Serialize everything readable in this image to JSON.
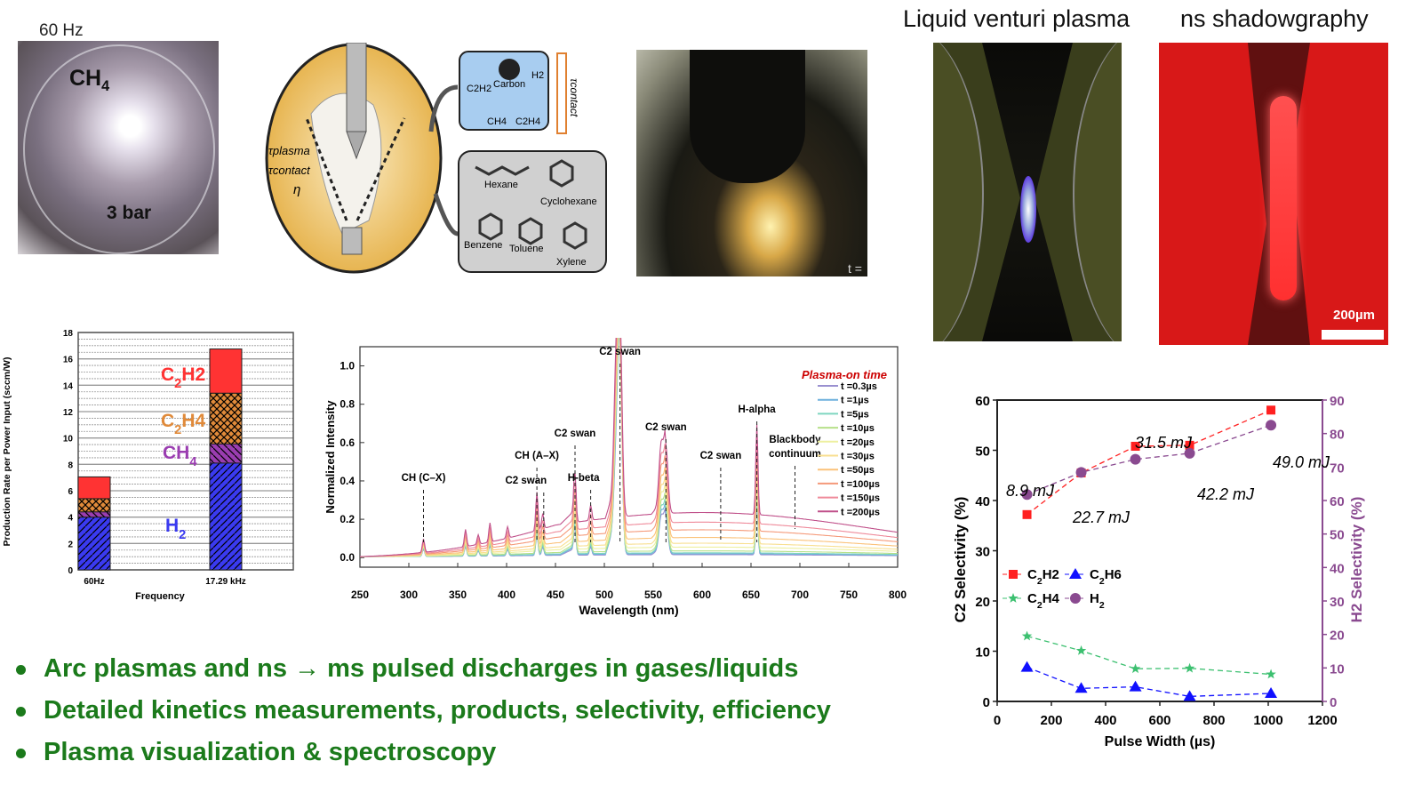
{
  "photos": {
    "methane_arc": {
      "freq_label": "60 Hz",
      "gas_label": "CH4",
      "pressure_label": "3 bar"
    },
    "venturi": {
      "title": "Liquid venturi plasma"
    },
    "shadowgraphy": {
      "title": "ns shadowgraphy",
      "scale_label": "200µm"
    },
    "pulsed_liquid": {
      "corner_text": "t ="
    }
  },
  "diagram": {
    "tau_plasma": "τplasma",
    "tau_contact": "τcontact",
    "eta": "η",
    "gas_products": [
      "C2H2",
      "Carbon",
      "H2",
      "CH4",
      "C2H4"
    ],
    "tau_contact_axis": "τcontact",
    "liquid_products": [
      "Hexane",
      "Cyclohexane",
      "Benzene",
      "Toluene",
      "Xylene"
    ]
  },
  "bullets": [
    "Arc plasmas and ns → ms pulsed discharges in gases/liquids",
    "Detailed kinetics measurements, products, selectivity, efficiency",
    "Plasma visualization & spectroscopy"
  ],
  "colors": {
    "bullet": "#1b7a1b",
    "h2": "#3a3af0",
    "ch4": "#9a3db0",
    "c2h4": "#e08a3a",
    "c2h2": "#ff3333"
  },
  "chart_data": [
    {
      "type": "bar",
      "stacked": true,
      "title": "",
      "xlabel": "Frequency",
      "ylabel": "Production Rate per Power Input (sccm/W)",
      "ylim": [
        0,
        18
      ],
      "yticks": [
        0,
        2,
        4,
        6,
        8,
        10,
        12,
        14,
        16,
        18
      ],
      "categories": [
        "60Hz",
        "17.29 kHz"
      ],
      "series": [
        {
          "name": "H2",
          "values": [
            4.0,
            8.1
          ],
          "color": "#3a3af0",
          "pattern": "diag"
        },
        {
          "name": "CH4",
          "values": [
            0.4,
            1.45
          ],
          "color": "#9a3db0",
          "pattern": "diag-rev"
        },
        {
          "name": "C2H4",
          "values": [
            1.0,
            3.85
          ],
          "color": "#e08a3a",
          "pattern": "cross"
        },
        {
          "name": "C2H2",
          "values": [
            1.65,
            3.35
          ],
          "color": "#ff3333",
          "pattern": "none"
        }
      ],
      "grid": true
    },
    {
      "type": "line",
      "title": "",
      "xlabel": "Wavelength (nm)",
      "ylabel": "Normalized Intensity",
      "xlim": [
        250,
        800
      ],
      "ylim": [
        -0.05,
        1.1
      ],
      "xticks": [
        250,
        300,
        350,
        400,
        450,
        500,
        550,
        600,
        650,
        700,
        750,
        800
      ],
      "yticks": [
        0.0,
        0.2,
        0.4,
        0.6,
        0.8,
        1.0
      ],
      "legend_title": "Plasma-on time",
      "legend_position": "top-right",
      "peaks": [
        {
          "wl": 315,
          "h": 0.07
        },
        {
          "wl": 358,
          "h": 0.09
        },
        {
          "wl": 371,
          "h": 0.05
        },
        {
          "wl": 383,
          "h": 0.1
        },
        {
          "wl": 401,
          "h": 0.06
        },
        {
          "wl": 431,
          "h": 0.2
        },
        {
          "wl": 437,
          "h": 0.08
        },
        {
          "wl": 470,
          "h": 0.26
        },
        {
          "wl": 486,
          "h": 0.08
        },
        {
          "wl": 512,
          "h": 0.6
        },
        {
          "wl": 516,
          "h": 0.99
        },
        {
          "wl": 558,
          "h": 0.3
        },
        {
          "wl": 563,
          "h": 0.34
        },
        {
          "wl": 656,
          "h": 0.47
        }
      ],
      "series": [
        {
          "name": "t =0.3µs",
          "color": "#9a90d0",
          "continuum": 0.01
        },
        {
          "name": "t =1µs",
          "color": "#6fb1dd",
          "continuum": 0.015
        },
        {
          "name": "t =5µs",
          "color": "#7fd6c0",
          "continuum": 0.02
        },
        {
          "name": "t =10µs",
          "color": "#b6e08a",
          "continuum": 0.03
        },
        {
          "name": "t =20µs",
          "color": "#eef0a0",
          "continuum": 0.05
        },
        {
          "name": "t =30µs",
          "color": "#f8df90",
          "continuum": 0.07
        },
        {
          "name": "t =50µs",
          "color": "#fbc27a",
          "continuum": 0.1
        },
        {
          "name": "t =100µs",
          "color": "#f59a7a",
          "continuum": 0.14
        },
        {
          "name": "t =150µs",
          "color": "#ef8a9a",
          "continuum": 0.18
        },
        {
          "name": "t =200µs",
          "color": "#c0508a",
          "continuum": 0.23
        }
      ],
      "annotations": [
        {
          "text": "CH (C–X)",
          "wl": 315
        },
        {
          "text": "CH (A–X)",
          "wl": 431
        },
        {
          "text": "C2 swan",
          "wl": 438
        },
        {
          "text": "C2 swan",
          "wl": 470
        },
        {
          "text": "H-beta",
          "wl": 486
        },
        {
          "text": "C2 swan",
          "wl": 516
        },
        {
          "text": "C2 swan",
          "wl": 563
        },
        {
          "text": "C2 swan",
          "wl": 619
        },
        {
          "text": "H-alpha",
          "wl": 656
        },
        {
          "text": "Blackbody continuum",
          "wl": 695
        }
      ]
    },
    {
      "type": "scatter",
      "title": "",
      "xlabel": "Pulse Width (µs)",
      "ylabel": "C2 Selectivity (%)",
      "y2label": "H2 Selectivity (%)",
      "xlim": [
        0,
        1200
      ],
      "ylim": [
        0,
        60
      ],
      "y2lim": [
        0,
        90
      ],
      "xticks": [
        0,
        200,
        400,
        600,
        800,
        1000,
        1200
      ],
      "yticks": [
        0,
        10,
        20,
        30,
        40,
        50,
        60
      ],
      "y2ticks": [
        0,
        10,
        20,
        30,
        40,
        50,
        60,
        70,
        80,
        90
      ],
      "x": [
        110,
        310,
        510,
        710,
        1010
      ],
      "series": [
        {
          "name": "C2H2",
          "axis": "left",
          "marker": "square",
          "color": "#ff2020",
          "values": [
            37.2,
            45.5,
            50.8,
            51.0,
            58.0
          ]
        },
        {
          "name": "C2H6",
          "axis": "left",
          "marker": "triangle",
          "color": "#1010ff",
          "values": [
            6.8,
            2.6,
            2.9,
            1.0,
            1.6
          ]
        },
        {
          "name": "C2H4",
          "axis": "left",
          "marker": "star",
          "color": "#3cc070",
          "values": [
            13.0,
            10.1,
            6.5,
            6.6,
            5.4
          ]
        },
        {
          "name": "H2",
          "axis": "right",
          "marker": "circle",
          "color": "#8a4a90",
          "values": [
            61.8,
            68.4,
            72.3,
            74.1,
            82.5
          ]
        }
      ],
      "energy_labels": [
        "8.9 mJ",
        "22.7 mJ",
        "31.5 mJ",
        "42.2 mJ",
        "49.0 mJ"
      ],
      "legend_position": "center-left"
    }
  ]
}
